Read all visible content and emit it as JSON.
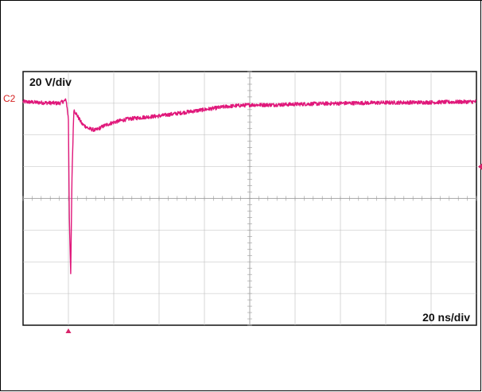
{
  "colors": {
    "trace": "#e0177a",
    "grid": "#bcbcbc",
    "marker": "#d8246a",
    "channel_label": "#d42020"
  },
  "chart_data": {
    "type": "line",
    "title": "",
    "channel": "C2",
    "vertical_scale": "20 V/div",
    "horizontal_scale": "20 ns/div",
    "grid": true,
    "x_divisions": 10,
    "y_divisions": 8,
    "xlim": [
      0,
      10
    ],
    "ylim": [
      -4,
      4
    ],
    "series": [
      {
        "x": [
          0,
          0.4,
          0.8,
          0.95,
          1.0,
          1.02,
          1.05,
          1.08,
          1.12,
          1.2,
          1.3,
          1.45,
          1.6,
          1.8,
          2.0,
          2.3,
          2.6,
          3.0,
          3.5,
          4.0,
          4.5,
          5.0,
          5.5,
          6.0,
          7.0,
          8.0,
          9.0,
          10.0
        ],
        "y": [
          3.05,
          3.02,
          3.0,
          3.1,
          2.5,
          -0.5,
          -2.4,
          0.8,
          2.8,
          2.6,
          2.35,
          2.2,
          2.15,
          2.3,
          2.4,
          2.5,
          2.55,
          2.6,
          2.7,
          2.8,
          2.9,
          2.95,
          2.95,
          2.97,
          3.0,
          3.02,
          3.03,
          3.05
        ]
      }
    ],
    "noise_amplitude_div": 0.06,
    "trigger_time_div": 1.0,
    "trigger_level_div": 1.0
  }
}
